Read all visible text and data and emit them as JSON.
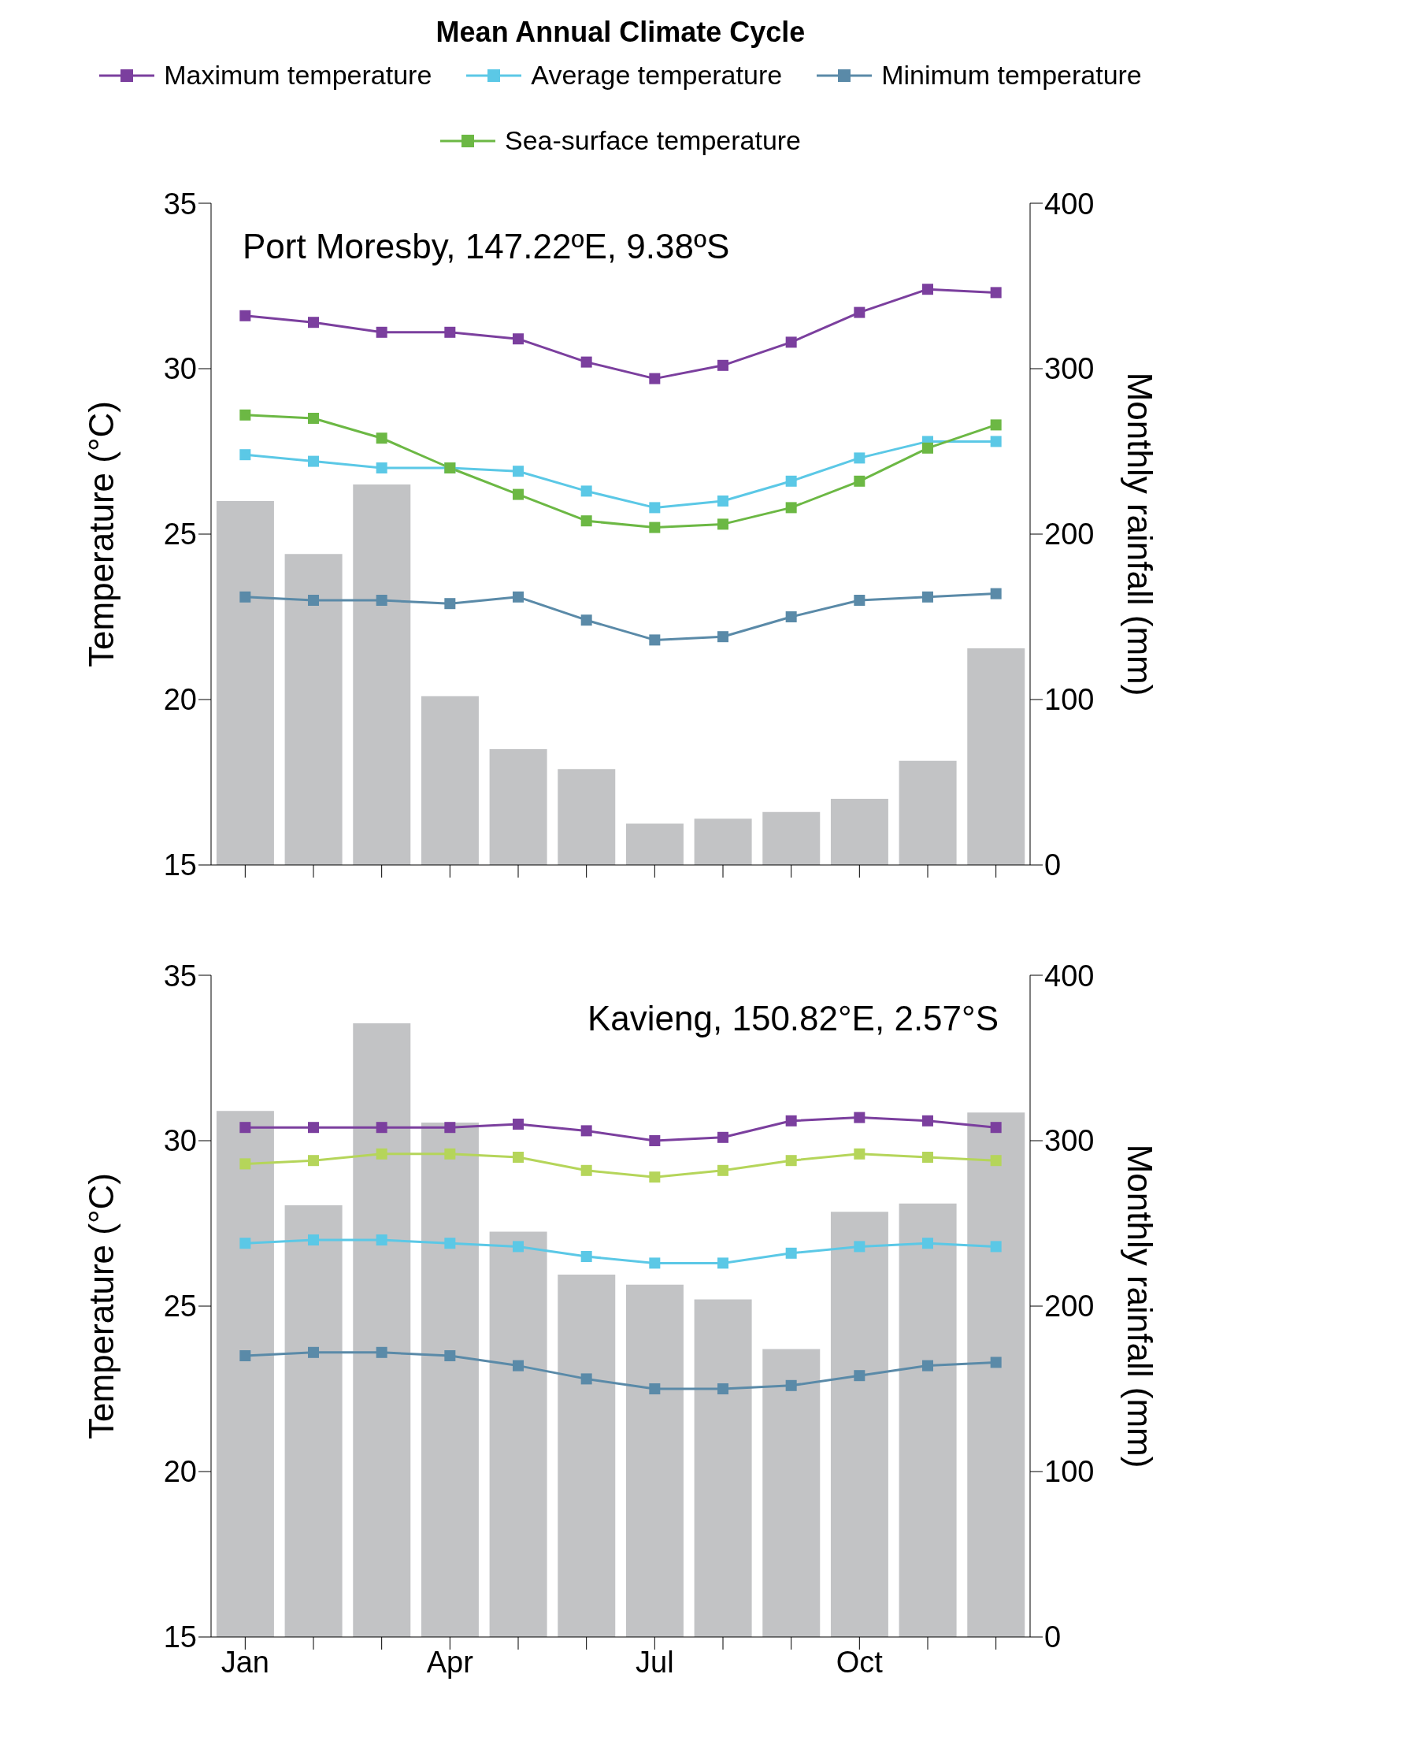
{
  "chart_data": [
    {
      "type": "line",
      "title": "Mean Annual Climate Cycle",
      "legend": "top",
      "marker": "square",
      "line_style": "solid",
      "annotations": [
        "Port Moresby, 147.22ºE, 9.38ºS"
      ],
      "categories": [
        null,
        null,
        null,
        null,
        null,
        null,
        null,
        null,
        null,
        null,
        null,
        null
      ],
      "ylabel": "Temperature (°C)",
      "y2label": "Monthly rainfall (mm)",
      "ylim": [
        15,
        35
      ],
      "yticks": [
        15,
        20,
        25,
        30,
        35
      ],
      "y2lim": [
        0,
        400
      ],
      "y2ticks": [
        0,
        100,
        200,
        300,
        400
      ],
      "series": [
        {
          "type": "bar",
          "axis": "y2",
          "color": "#c2c3c5",
          "values": [
            220,
            188,
            230,
            102,
            70,
            58,
            25,
            28,
            32,
            40,
            63,
            131
          ]
        },
        {
          "name": "Maximum temperature",
          "color": "#7b3f9e",
          "values": [
            31.6,
            31.4,
            31.1,
            31.1,
            30.9,
            30.2,
            29.7,
            30.1,
            30.8,
            31.7,
            32.4,
            32.3
          ]
        },
        {
          "name": "Average temperature",
          "color": "#5bc8e6",
          "values": [
            27.4,
            27.2,
            27.0,
            27.0,
            26.9,
            26.3,
            25.8,
            26.0,
            26.6,
            27.3,
            27.8,
            27.8
          ]
        },
        {
          "name": "Minimum temperature",
          "color": "#5a8aa8",
          "values": [
            23.1,
            23.0,
            23.0,
            22.9,
            23.1,
            22.4,
            21.8,
            21.9,
            22.5,
            23.0,
            23.1,
            23.2
          ]
        },
        {
          "name": "Sea-surface temperature",
          "color": "#6cb844",
          "values": [
            28.6,
            28.5,
            27.9,
            27.0,
            26.2,
            25.4,
            25.2,
            25.3,
            25.8,
            26.6,
            27.6,
            28.3
          ]
        }
      ]
    },
    {
      "type": "line",
      "marker": "square",
      "line_style": "solid",
      "annotations": [
        "Kavieng, 150.82°E, 2.57°S"
      ],
      "categories": [
        "Jan",
        null,
        null,
        "Apr",
        null,
        null,
        "Jul",
        null,
        null,
        "Oct",
        null,
        null
      ],
      "ylabel": "Temperature (°C)",
      "y2label": "Monthly rainfall (mm)",
      "ylim": [
        15,
        35
      ],
      "yticks": [
        15,
        20,
        25,
        30,
        35
      ],
      "y2lim": [
        0,
        400
      ],
      "y2ticks": [
        0,
        100,
        200,
        300,
        400
      ],
      "series": [
        {
          "type": "bar",
          "axis": "y2",
          "color": "#c2c3c5",
          "values": [
            318,
            261,
            371,
            311,
            245,
            219,
            213,
            204,
            174,
            257,
            262,
            317
          ]
        },
        {
          "color": "#7b3f9e",
          "values": [
            30.4,
            30.4,
            30.4,
            30.4,
            30.5,
            30.3,
            30.0,
            30.1,
            30.6,
            30.7,
            30.6,
            30.4
          ]
        },
        {
          "color": "#b5d55a",
          "values": [
            29.3,
            29.4,
            29.6,
            29.6,
            29.5,
            29.1,
            28.9,
            29.1,
            29.4,
            29.6,
            29.5,
            29.4
          ]
        },
        {
          "color": "#5bc8e6",
          "values": [
            26.9,
            27.0,
            27.0,
            26.9,
            26.8,
            26.5,
            26.3,
            26.3,
            26.6,
            26.8,
            26.9,
            26.8
          ]
        },
        {
          "color": "#5a8aa8",
          "values": [
            23.5,
            23.6,
            23.6,
            23.5,
            23.2,
            22.8,
            22.5,
            22.5,
            22.6,
            22.9,
            23.2,
            23.3
          ]
        }
      ]
    }
  ]
}
